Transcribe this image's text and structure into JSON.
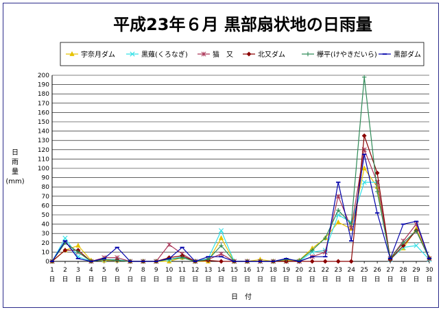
{
  "chart_data": {
    "type": "line",
    "title": "平成23年６月 黒部扇状地の日雨量",
    "ylabel_lines": [
      "日",
      "雨",
      "量",
      "(mm)"
    ],
    "xlabel": "日　付",
    "x_day_suffix": "日",
    "ylim": [
      0,
      200
    ],
    "y_step": 10,
    "x": [
      1,
      2,
      3,
      4,
      5,
      6,
      7,
      8,
      9,
      10,
      11,
      12,
      13,
      14,
      15,
      16,
      17,
      18,
      19,
      20,
      21,
      22,
      23,
      24,
      25,
      26,
      27,
      28,
      29,
      30
    ],
    "grid": "horizontal",
    "legend_position": "top",
    "series": [
      {
        "name": "宇奈月ダム",
        "color": "#e6c200",
        "marker": "triangle",
        "values": [
          0,
          12,
          17,
          1,
          1,
          1,
          0,
          0,
          0,
          0,
          4,
          0,
          0,
          25,
          0,
          0,
          2,
          0,
          1,
          1,
          14,
          25,
          42,
          35,
          100,
          80,
          4,
          14,
          35,
          4
        ]
      },
      {
        "name": "黒薙(くろなぎ)",
        "color": "#33e0e6",
        "marker": "x",
        "values": [
          0,
          25,
          5,
          0,
          2,
          2,
          0,
          0,
          0,
          2,
          5,
          0,
          3,
          33,
          0,
          0,
          0,
          0,
          0,
          0,
          10,
          12,
          50,
          42,
          85,
          85,
          2,
          15,
          17,
          2
        ]
      },
      {
        "name": "猫　又",
        "color": "#aa3355",
        "marker": "star",
        "values": [
          0,
          20,
          10,
          0,
          4,
          4,
          0,
          0,
          0,
          18,
          8,
          0,
          2,
          8,
          0,
          0,
          0,
          0,
          0,
          0,
          5,
          10,
          70,
          36,
          120,
          85,
          3,
          22,
          40,
          3
        ]
      },
      {
        "name": "北又ダム",
        "color": "#8b0000",
        "marker": "diamond",
        "values": [
          0,
          12,
          12,
          0,
          2,
          1,
          0,
          0,
          0,
          4,
          6,
          0,
          1,
          0,
          0,
          0,
          0,
          0,
          0,
          0,
          0,
          0,
          0,
          0,
          135,
          95,
          2,
          17,
          33,
          3
        ]
      },
      {
        "name": "欅平(けやきだいら)",
        "color": "#2e8b57",
        "marker": "plus",
        "values": [
          0,
          20,
          10,
          0,
          2,
          1,
          0,
          0,
          0,
          2,
          4,
          0,
          2,
          17,
          0,
          0,
          0,
          0,
          2,
          1,
          12,
          25,
          55,
          40,
          198,
          75,
          3,
          20,
          33,
          3
        ]
      },
      {
        "name": "黒部ダム",
        "color": "#0000aa",
        "marker": "dash",
        "values": [
          0,
          22,
          3,
          0,
          3,
          15,
          0,
          0,
          0,
          3,
          15,
          0,
          5,
          5,
          0,
          0,
          0,
          0,
          3,
          0,
          5,
          5,
          85,
          22,
          115,
          52,
          3,
          40,
          43,
          3
        ]
      }
    ]
  }
}
